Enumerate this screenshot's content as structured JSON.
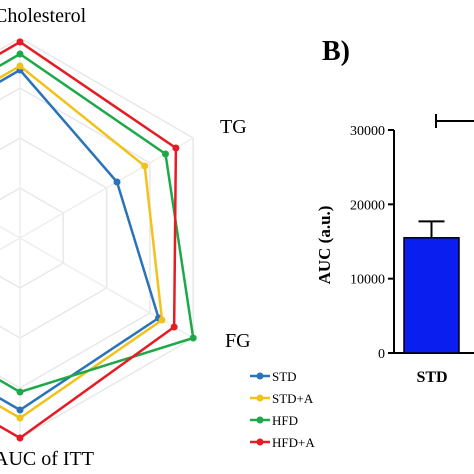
{
  "chart_data": [
    {
      "type": "radar",
      "axes": [
        "Cholesterol",
        "TG",
        "FG",
        "AUC of ITT"
      ],
      "series": [
        {
          "name": "STD",
          "color": "#2a73b8",
          "values": [
            0.84,
            0.56,
            0.8,
            0.86
          ]
        },
        {
          "name": "STD+A",
          "color": "#f2c21b",
          "values": [
            0.86,
            0.72,
            0.82,
            0.9
          ]
        },
        {
          "name": "HFD",
          "color": "#1ea84a",
          "values": [
            0.92,
            0.84,
            1.0,
            0.77
          ]
        },
        {
          "name": "HFD+A",
          "color": "#e51c23",
          "values": [
            0.98,
            0.9,
            0.89,
            1.0
          ]
        }
      ],
      "legend": {
        "placement": "bottom-right"
      }
    },
    {
      "type": "bar",
      "panel_label": "B)",
      "ylabel": "AUC (a.u.)",
      "yticks": [
        "0",
        "10000",
        "20000",
        "30000"
      ],
      "ylim": [
        0,
        30000
      ],
      "categories": [
        "STD"
      ],
      "values": [
        15500
      ],
      "error": [
        2200
      ],
      "bar_color": "#0a1ef0"
    }
  ]
}
